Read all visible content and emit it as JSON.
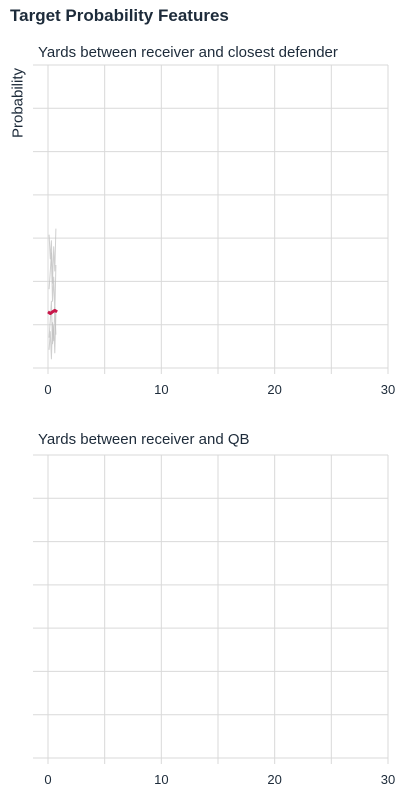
{
  "page": {
    "title": "Target Probability Features"
  },
  "chart_data": [
    {
      "type": "line",
      "title": "Yards between receiver and closest defender",
      "xlabel": "",
      "ylabel": "Probability",
      "xlim": [
        0,
        30
      ],
      "ylim": [
        0,
        1
      ],
      "x_ticks": [
        0,
        10,
        20,
        30
      ],
      "grid": true,
      "series": [
        {
          "role": "background",
          "color": "#bfbfbf",
          "x": [
            0.1,
            0.2,
            0.3,
            0.4,
            0.5,
            0.6,
            0.7
          ],
          "y": [
            0.26,
            0.32,
            0.38,
            0.22,
            0.3,
            0.18,
            0.34
          ]
        },
        {
          "role": "background",
          "color": "#bfbfbf",
          "x": [
            0.1,
            0.2,
            0.3,
            0.4,
            0.5,
            0.6,
            0.7
          ],
          "y": [
            0.1,
            0.16,
            0.22,
            0.08,
            0.14,
            0.05,
            0.18
          ]
        },
        {
          "role": "background",
          "color": "#bfbfbf",
          "x": [
            0.1,
            0.2,
            0.3,
            0.4,
            0.5,
            0.6,
            0.7
          ],
          "y": [
            0.44,
            0.36,
            0.42,
            0.28,
            0.4,
            0.32,
            0.46
          ]
        },
        {
          "role": "background",
          "color": "#bfbfbf",
          "x": [
            0.1,
            0.2,
            0.3,
            0.4,
            0.5,
            0.6,
            0.7
          ],
          "y": [
            0.06,
            0.12,
            0.03,
            0.15,
            0.09,
            0.2,
            0.11
          ]
        },
        {
          "role": "highlight",
          "color": "#c8184a",
          "x": [
            0.0,
            0.2,
            0.4,
            0.6,
            0.8
          ],
          "y": [
            0.185,
            0.18,
            0.185,
            0.19,
            0.185
          ]
        }
      ]
    },
    {
      "type": "line",
      "title": "Yards between receiver and QB",
      "xlabel": "",
      "ylabel": "",
      "xlim": [
        0,
        30
      ],
      "ylim": [
        0,
        1
      ],
      "x_ticks": [
        0,
        10,
        20,
        30
      ],
      "grid": true,
      "series": []
    }
  ]
}
